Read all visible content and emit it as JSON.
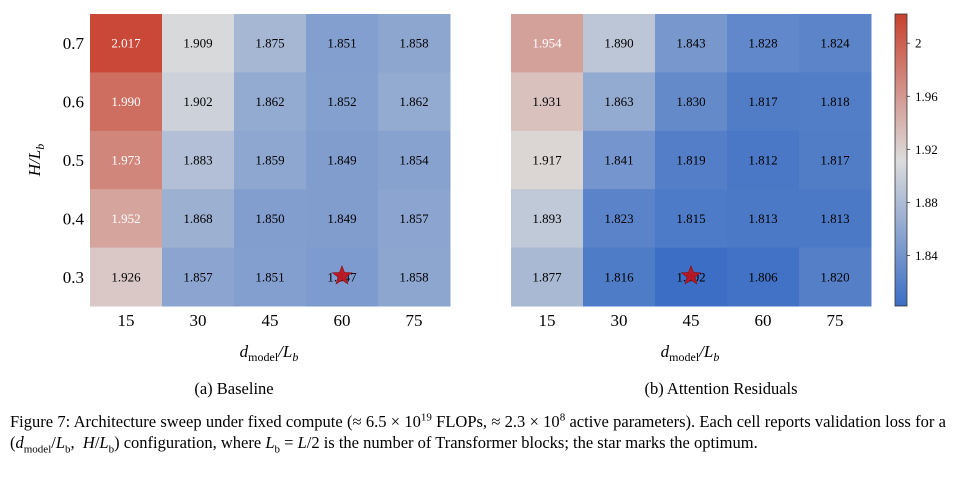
{
  "colors": {
    "low": "#3b6ec4",
    "mid": "#dcdcdc",
    "high": "#c8412f"
  },
  "colorbar": {
    "min": 1.802,
    "max": 2.022,
    "ticks": [
      "2",
      "1.96",
      "1.92",
      "1.88",
      "1.84"
    ]
  },
  "x_axis_label": "d_model/L_b",
  "y_axis_label": "H/L_b",
  "chart_data": [
    {
      "type": "heatmap",
      "caption": "(a) Baseline",
      "x": [
        "15",
        "30",
        "45",
        "60",
        "75"
      ],
      "y": [
        "0.7",
        "0.6",
        "0.5",
        "0.4",
        "0.3"
      ],
      "values": [
        [
          2.017,
          1.909,
          1.875,
          1.851,
          1.858
        ],
        [
          1.99,
          1.902,
          1.862,
          1.852,
          1.862
        ],
        [
          1.973,
          1.883,
          1.859,
          1.849,
          1.854
        ],
        [
          1.952,
          1.868,
          1.85,
          1.849,
          1.857
        ],
        [
          1.926,
          1.857,
          1.851,
          1.847,
          1.858
        ]
      ],
      "labels": [
        [
          "2.017",
          "1.909",
          "1.875",
          "1.851",
          "1.858"
        ],
        [
          "1.990",
          "1.902",
          "1.862",
          "1.852",
          "1.862"
        ],
        [
          "1.973",
          "1.883",
          "1.859",
          "1.849",
          "1.854"
        ],
        [
          "1.952",
          "1.868",
          "1.850",
          "1.849",
          "1.857"
        ],
        [
          "1.926",
          "1.857",
          "1.851",
          "1.847",
          "1.858"
        ]
      ],
      "star": {
        "x": "60",
        "y": "0.3"
      }
    },
    {
      "type": "heatmap",
      "caption": "(b) Attention Residuals",
      "x": [
        "15",
        "30",
        "45",
        "60",
        "75"
      ],
      "y": [
        "0.7",
        "0.6",
        "0.5",
        "0.4",
        "0.3"
      ],
      "values": [
        [
          1.954,
          1.89,
          1.843,
          1.828,
          1.824
        ],
        [
          1.931,
          1.863,
          1.83,
          1.817,
          1.818
        ],
        [
          1.917,
          1.841,
          1.819,
          1.812,
          1.817
        ],
        [
          1.893,
          1.823,
          1.815,
          1.813,
          1.813
        ],
        [
          1.877,
          1.816,
          1.802,
          1.806,
          1.82
        ]
      ],
      "labels": [
        [
          "1.954",
          "1.890",
          "1.843",
          "1.828",
          "1.824"
        ],
        [
          "1.931",
          "1.863",
          "1.830",
          "1.817",
          "1.818"
        ],
        [
          "1.917",
          "1.841",
          "1.819",
          "1.812",
          "1.817"
        ],
        [
          "1.893",
          "1.823",
          "1.815",
          "1.813",
          "1.813"
        ],
        [
          "1.877",
          "1.816",
          "1.802",
          "1.806",
          "1.820"
        ]
      ],
      "star": {
        "x": "45",
        "y": "0.3"
      }
    }
  ],
  "caption": {
    "lead": "Figure 7:",
    "text_1": "Architecture sweep under fixed compute (≈ 6.5 × 10",
    "exp_1": "19",
    "text_2": " FLOPs, ≈ 2.3 × 10",
    "exp_2": "8",
    "text_3": " active parameters). Each cell reports validation loss for a (",
    "text_4": ") configuration, where ",
    "text_5": " is the number of Transformer blocks; the star marks the optimum."
  }
}
